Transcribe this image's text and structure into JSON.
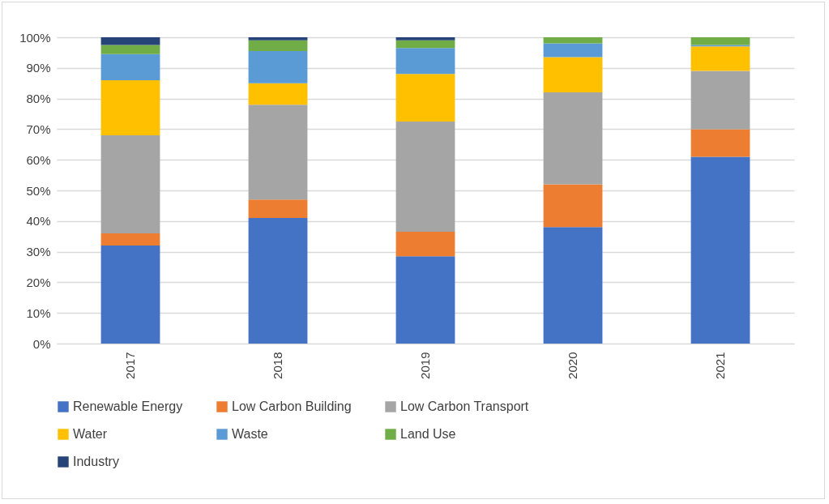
{
  "chart_data": {
    "type": "bar",
    "stacked": true,
    "categories": [
      "2017",
      "2018",
      "2019",
      "2020",
      "2021"
    ],
    "series": [
      {
        "name": "Renewable Energy",
        "color": "#4472c4",
        "values": [
          32,
          41,
          28.5,
          38,
          61
        ]
      },
      {
        "name": "Low Carbon Building",
        "color": "#ed7d31",
        "values": [
          4,
          6,
          8,
          14,
          9
        ]
      },
      {
        "name": "Low Carbon Transport",
        "color": "#a5a5a5",
        "values": [
          32,
          31,
          36,
          30,
          19
        ]
      },
      {
        "name": "Water",
        "color": "#ffc000",
        "values": [
          18,
          7,
          15.5,
          11.5,
          8
        ]
      },
      {
        "name": "Waste",
        "color": "#5b9bd5",
        "values": [
          8.5,
          10.5,
          8.5,
          4.5,
          0.5
        ]
      },
      {
        "name": "Land Use",
        "color": "#70ad47",
        "values": [
          3,
          3.5,
          2.5,
          2,
          2.5
        ]
      },
      {
        "name": "Industry",
        "color": "#264478",
        "values": [
          2.5,
          1,
          1,
          0,
          0
        ]
      }
    ],
    "ylim": [
      0,
      100
    ],
    "yticks": [
      {
        "value": 0,
        "label": "0%"
      },
      {
        "value": 10,
        "label": "10%"
      },
      {
        "value": 20,
        "label": "20%"
      },
      {
        "value": 30,
        "label": "30%"
      },
      {
        "value": 40,
        "label": "40%"
      },
      {
        "value": 50,
        "label": "50%"
      },
      {
        "value": 60,
        "label": "60%"
      },
      {
        "value": 70,
        "label": "70%"
      },
      {
        "value": 80,
        "label": "80%"
      },
      {
        "value": 90,
        "label": "90%"
      },
      {
        "value": 100,
        "label": "100%"
      }
    ],
    "grid": "y",
    "legend": "bottom"
  }
}
